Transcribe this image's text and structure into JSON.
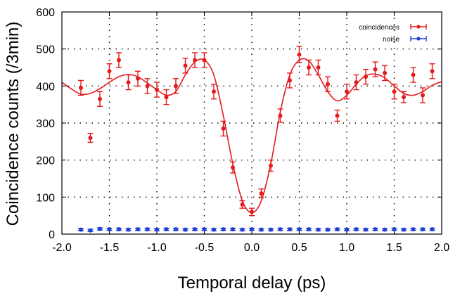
{
  "chart_data": {
    "type": "scatter",
    "title": "",
    "xlabel": "Temporal delay (ps)",
    "ylabel": "Coincidence counts (/3min)",
    "xlim": [
      -2.0,
      2.0
    ],
    "ylim": [
      0,
      600
    ],
    "x_ticks": [
      -2.0,
      -1.5,
      -1.0,
      -0.5,
      0.0,
      0.5,
      1.0,
      1.5,
      2.0
    ],
    "x_tick_labels": [
      "-2.0",
      "-1.5",
      "-1.0",
      "-0.5",
      "0.0",
      "0.5",
      "1.0",
      "1.5",
      "2.0"
    ],
    "y_ticks": [
      0,
      100,
      200,
      300,
      400,
      500,
      600
    ],
    "y_tick_labels": [
      "0",
      "100",
      "200",
      "300",
      "400",
      "500",
      "600"
    ],
    "grid": "dotted",
    "legend_position": "top-right",
    "series": [
      {
        "name": "coincidences",
        "color": "#e41a1c",
        "x": [
          -1.8,
          -1.7,
          -1.6,
          -1.5,
          -1.4,
          -1.3,
          -1.2,
          -1.1,
          -1.0,
          -0.9,
          -0.8,
          -0.7,
          -0.6,
          -0.5,
          -0.4,
          -0.3,
          -0.2,
          -0.1,
          0.0,
          0.1,
          0.2,
          0.3,
          0.4,
          0.5,
          0.6,
          0.7,
          0.8,
          0.9,
          1.0,
          1.1,
          1.2,
          1.3,
          1.4,
          1.5,
          1.6,
          1.7,
          1.8,
          1.9
        ],
        "y": [
          395,
          260,
          365,
          440,
          470,
          410,
          420,
          400,
          390,
          370,
          400,
          455,
          470,
          470,
          385,
          285,
          180,
          80,
          60,
          110,
          185,
          320,
          415,
          485,
          450,
          450,
          405,
          320,
          385,
          410,
          425,
          445,
          435,
          385,
          370,
          430,
          375,
          440
        ],
        "err": [
          20,
          12,
          20,
          20,
          20,
          20,
          20,
          20,
          20,
          20,
          20,
          20,
          20,
          20,
          20,
          20,
          15,
          10,
          10,
          12,
          15,
          18,
          20,
          22,
          20,
          20,
          20,
          15,
          20,
          20,
          20,
          20,
          20,
          20,
          15,
          20,
          20,
          20
        ]
      },
      {
        "name": "noise",
        "color": "#1f3fd8",
        "x": [
          -1.8,
          -1.7,
          -1.6,
          -1.5,
          -1.4,
          -1.3,
          -1.2,
          -1.1,
          -1.0,
          -0.9,
          -0.8,
          -0.7,
          -0.6,
          -0.5,
          -0.4,
          -0.3,
          -0.2,
          -0.1,
          0.0,
          0.1,
          0.2,
          0.3,
          0.4,
          0.5,
          0.6,
          0.7,
          0.8,
          0.9,
          1.0,
          1.1,
          1.2,
          1.3,
          1.4,
          1.5,
          1.6,
          1.7,
          1.8,
          1.9
        ],
        "y": [
          12,
          10,
          14,
          13,
          13,
          12,
          13,
          13,
          12,
          13,
          13,
          12,
          13,
          13,
          12,
          13,
          13,
          12,
          13,
          12,
          12,
          13,
          13,
          13,
          13,
          12,
          12,
          13,
          12,
          13,
          12,
          13,
          12,
          13,
          12,
          13,
          13,
          13
        ],
        "err": [
          3,
          3,
          3,
          3,
          3,
          3,
          3,
          3,
          3,
          3,
          3,
          3,
          3,
          3,
          3,
          3,
          3,
          3,
          3,
          3,
          3,
          3,
          3,
          3,
          3,
          3,
          3,
          3,
          3,
          3,
          3,
          3,
          3,
          3,
          3,
          3,
          3,
          3
        ]
      }
    ],
    "fit_curve": {
      "color": "#e41a1c",
      "x": [
        -2.0,
        -1.9,
        -1.8,
        -1.7,
        -1.6,
        -1.5,
        -1.4,
        -1.3,
        -1.2,
        -1.1,
        -1.0,
        -0.9,
        -0.8,
        -0.7,
        -0.6,
        -0.5,
        -0.4,
        -0.3,
        -0.2,
        -0.1,
        0.0,
        0.1,
        0.2,
        0.3,
        0.4,
        0.5,
        0.6,
        0.7,
        0.8,
        0.9,
        1.0,
        1.1,
        1.2,
        1.3,
        1.4,
        1.5,
        1.6,
        1.7,
        1.8,
        1.9,
        2.0
      ],
      "y": [
        410,
        392,
        378,
        380,
        393,
        410,
        425,
        431,
        425,
        408,
        390,
        375,
        385,
        430,
        465,
        470,
        430,
        320,
        190,
        90,
        58,
        90,
        190,
        330,
        430,
        470,
        468,
        430,
        385,
        360,
        375,
        405,
        428,
        432,
        422,
        400,
        380,
        375,
        385,
        402,
        412
      ]
    }
  }
}
